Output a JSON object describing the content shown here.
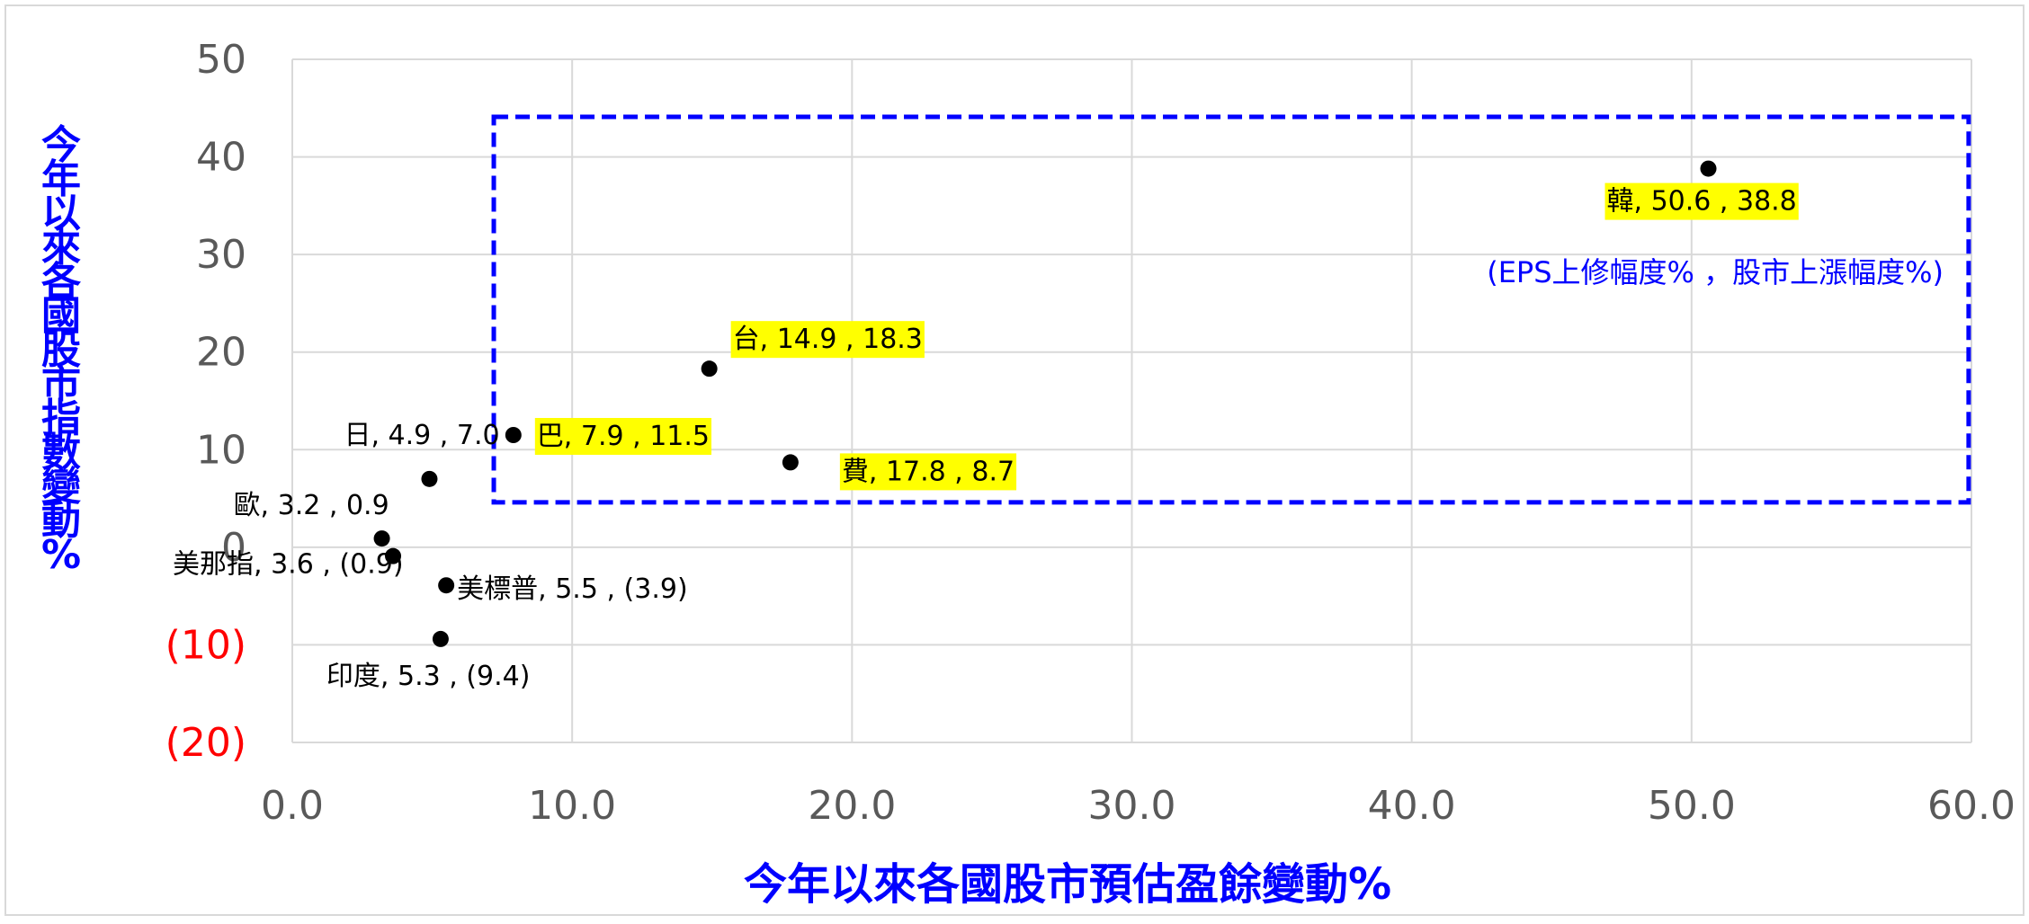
{
  "chart_data": {
    "type": "scatter",
    "title": "",
    "xlabel": "今年以來各國股市預估盈餘變動%",
    "ylabel": "今年以來各國股市指數變動%",
    "xlim": [
      0,
      60
    ],
    "ylim": [
      -20,
      50
    ],
    "x_ticks": [
      0,
      10,
      20,
      30,
      40,
      50,
      60
    ],
    "y_ticks": [
      -20,
      -10,
      0,
      10,
      20,
      30,
      40,
      50
    ],
    "x_tick_labels": [
      "0.0",
      "10.0",
      "20.0",
      "30.0",
      "40.0",
      "50.0",
      "60.0"
    ],
    "y_tick_labels": [
      "(20)",
      "(10)",
      "0",
      "10",
      "20",
      "30",
      "40",
      "50"
    ],
    "negative_tick_color": "#ff0000",
    "axis_title_color": "#0000ff",
    "grid": true,
    "marker_color": "#000000",
    "highlight_color": "#ffff00",
    "box_color": "#0000ff",
    "annotation": "(EPS上修幅度% ，股市上漲幅度%)",
    "points": [
      {
        "label": "韓, 50.6 , 38.8",
        "x": 50.6,
        "y": 38.8,
        "highlight": true
      },
      {
        "label": "台, 14.9 , 18.3",
        "x": 14.9,
        "y": 18.3,
        "highlight": true
      },
      {
        "label": "巴, 7.9 , 11.5",
        "x": 7.9,
        "y": 11.5,
        "highlight": true
      },
      {
        "label": "費, 17.8 , 8.7",
        "x": 17.8,
        "y": 8.7,
        "highlight": true
      },
      {
        "label": "日, 4.9 , 7.0",
        "x": 4.9,
        "y": 7.0,
        "highlight": false
      },
      {
        "label": "歐, 3.2 , 0.9",
        "x": 3.2,
        "y": 0.9,
        "highlight": false
      },
      {
        "label": "美那指, 3.6 , (0.9)",
        "x": 3.6,
        "y": -0.9,
        "highlight": false
      },
      {
        "label": "美標普, 5.5 , (3.9)",
        "x": 5.5,
        "y": -3.9,
        "highlight": false
      },
      {
        "label": "印度, 5.3 , (9.4)",
        "x": 5.3,
        "y": -9.4,
        "highlight": false
      }
    ]
  }
}
